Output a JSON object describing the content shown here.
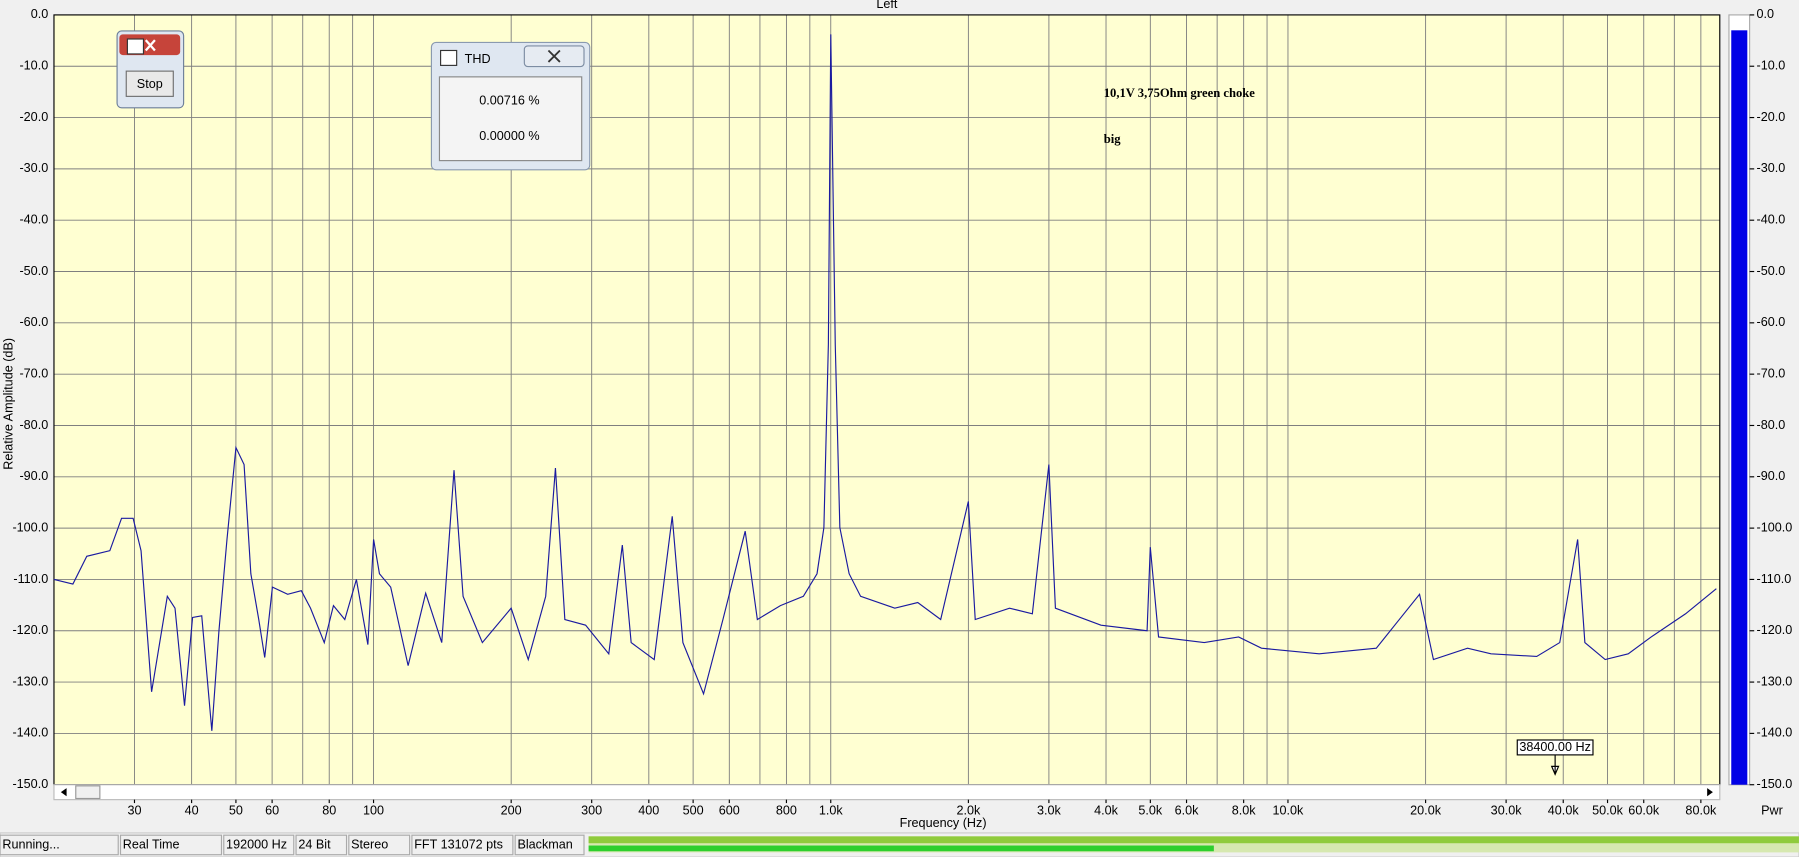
{
  "chart_data": {
    "type": "line",
    "title": "Left",
    "x_label": "Frequency (Hz)",
    "y_label": "Relative Amplitude (dB)",
    "xscale": "log",
    "xlim": [
      20,
      88000
    ],
    "ylim": [
      -150,
      0
    ],
    "grid": true,
    "xticks": [
      30,
      40,
      50,
      60,
      80,
      100,
      200,
      300,
      400,
      500,
      600,
      800,
      {
        "value": 1000,
        "label": "1.0k"
      },
      {
        "value": 2000,
        "label": "2.0k"
      },
      {
        "value": 3000,
        "label": "3.0k"
      },
      {
        "value": 4000,
        "label": "4.0k"
      },
      {
        "value": 5000,
        "label": "5.0k"
      },
      {
        "value": 6000,
        "label": "6.0k"
      },
      {
        "value": 8000,
        "label": "8.0k"
      },
      {
        "value": 10000,
        "label": "10.0k"
      },
      {
        "value": 20000,
        "label": "20.0k"
      },
      {
        "value": 30000,
        "label": "30.0k"
      },
      {
        "value": 40000,
        "label": "40.0k"
      },
      {
        "value": 50000,
        "label": "50.0k"
      },
      {
        "value": 60000,
        "label": "60.0k"
      },
      {
        "value": 80000,
        "label": "80.0k"
      }
    ],
    "xminor": [
      70,
      90,
      700,
      900,
      7000,
      9000,
      70000
    ],
    "yticks": [
      {
        "value": 0,
        "label": "0.0"
      },
      {
        "value": -10,
        "label": "-10.0"
      },
      {
        "value": -20,
        "label": "-20.0"
      },
      {
        "value": -30,
        "label": "-30.0"
      },
      {
        "value": -40,
        "label": "-40.0"
      },
      {
        "value": -50,
        "label": "-50.0"
      },
      {
        "value": -60,
        "label": "-60.0"
      },
      {
        "value": -70,
        "label": "-70.0"
      },
      {
        "value": -80,
        "label": "-80.0"
      },
      {
        "value": -90,
        "label": "-90.0"
      },
      {
        "value": -100,
        "label": "-100.0"
      },
      {
        "value": -110,
        "label": "-110.0"
      },
      {
        "value": -120,
        "label": "-120.0"
      },
      {
        "value": -130,
        "label": "-130.0"
      },
      {
        "value": -140,
        "label": "-140.0"
      },
      {
        "value": -150,
        "label": "-150.0"
      }
    ],
    "x": [
      20,
      22,
      23.6,
      26.5,
      28.1,
      29.8,
      31,
      32.7,
      35.4,
      36.8,
      38.6,
      40.2,
      42.1,
      44.3,
      45.9,
      47.8,
      50,
      52.1,
      53.9,
      56.1,
      57.8,
      60.1,
      64.9,
      69.5,
      72.8,
      78,
      81.7,
      86.5,
      91.7,
      97.2,
      100,
      103,
      109,
      119,
      130,
      141,
      150,
      157,
      173,
      200,
      218,
      238,
      250,
      262,
      291,
      327,
      350,
      366,
      411,
      450,
      475,
      527,
      581,
      650,
      691,
      776,
      871,
      933,
      966,
      988,
      1000,
      1023,
      1047,
      1097,
      1162,
      1381,
      1550,
      1740,
      2000,
      2070,
      2460,
      2760,
      3000,
      3100,
      3900,
      4920,
      5000,
      5210,
      6560,
      7800,
      8750,
      11700,
      15600,
      19400,
      20800,
      24700,
      27800,
      35000,
      39300,
      43000,
      44600,
      49400,
      55500,
      62300,
      74100,
      86500
    ],
    "series": [
      {
        "name": "Left",
        "color": "#1a1aa0",
        "values": [
          -110,
          -110.9,
          -105.5,
          -104.4,
          -98.1,
          -98.1,
          -104.4,
          -131.9,
          -113.3,
          -115.6,
          -134.6,
          -117.4,
          -117.1,
          -139.5,
          -120,
          -102.2,
          -84.3,
          -87.6,
          -108.9,
          -117.8,
          -125.2,
          -111.5,
          -112.9,
          -112.2,
          -115.6,
          -122.3,
          -115.1,
          -117.8,
          -110,
          -122.7,
          -102.2,
          -108.9,
          -111.5,
          -126.8,
          -112.7,
          -122.3,
          -88.7,
          -113.3,
          -122.3,
          -115.6,
          -125.6,
          -113.3,
          -88.3,
          -117.8,
          -118.9,
          -124.5,
          -103.3,
          -122.3,
          -125.6,
          -97.7,
          -122.3,
          -132.3,
          -117.8,
          -100.6,
          -117.8,
          -115.1,
          -113.3,
          -108.9,
          -99.9,
          -64.2,
          -3.8,
          -64.2,
          -99.9,
          -108.9,
          -113.3,
          -115.6,
          -114.5,
          -117.8,
          -94.8,
          -117.8,
          -115.6,
          -116.7,
          -87.6,
          -115.6,
          -118.9,
          -120,
          -103.7,
          -121.2,
          -122.3,
          -121.2,
          -123.4,
          -124.5,
          -123.4,
          -112.9,
          -125.6,
          -123.4,
          -124.5,
          -125,
          -122.3,
          -102.2,
          -122.3,
          -125.6,
          -124.5,
          -121.2,
          -116.7,
          -111.8
        ]
      }
    ]
  },
  "meter": {
    "name": "Pwr",
    "value": -3
  },
  "cursor": {
    "label": "38400.00 Hz",
    "value": 38400
  },
  "annotation": [
    "10,1V 3,75Ohm green choke",
    "big"
  ],
  "stop_window": {
    "button": "Stop"
  },
  "thd_window": {
    "title": "THD",
    "readings": [
      "0.00716 %",
      "0.00000 %"
    ]
  },
  "status_bar": [
    "Running...",
    "Real Time",
    "192000 Hz",
    "24 Bit",
    "Stereo",
    "FFT 131072 pts",
    "Blackman"
  ]
}
